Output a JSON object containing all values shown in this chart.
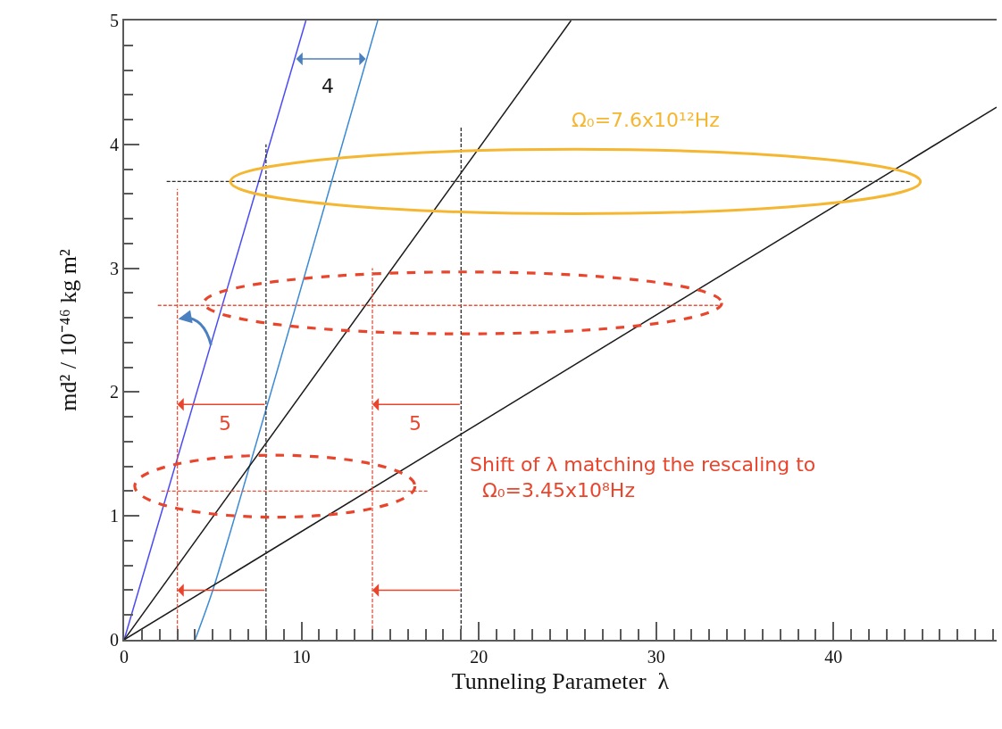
{
  "chart_data": {
    "type": "line",
    "xlabel": "Tunneling Parameter  λ",
    "ylabel": "md² / 10⁻⁴⁶ kg m²",
    "xlim": [
      0,
      49.2
    ],
    "ylim": [
      0,
      5
    ],
    "xticks": [
      0,
      10,
      20,
      30,
      40,
      {
        "value": 1,
        "label": null
      },
      {
        "value": 2,
        "label": null
      },
      {
        "value": 3,
        "label": null
      },
      {
        "value": 4,
        "label": null
      },
      {
        "value": 5,
        "label": null
      },
      {
        "value": 6,
        "label": null
      },
      {
        "value": 7,
        "label": null
      },
      {
        "value": 8,
        "label": null
      },
      {
        "value": 9,
        "label": null
      },
      {
        "value": 11,
        "label": null
      },
      {
        "value": 12,
        "label": null
      },
      {
        "value": 13,
        "label": null
      },
      {
        "value": 14,
        "label": null
      },
      {
        "value": 15,
        "label": null
      },
      {
        "value": 16,
        "label": null
      },
      {
        "value": 17,
        "label": null
      },
      {
        "value": 18,
        "label": null
      },
      {
        "value": 19,
        "label": null
      },
      {
        "value": 21,
        "label": null
      },
      {
        "value": 22,
        "label": null
      },
      {
        "value": 23,
        "label": null
      },
      {
        "value": 24,
        "label": null
      },
      {
        "value": 25,
        "label": null
      },
      {
        "value": 26,
        "label": null
      },
      {
        "value": 27,
        "label": null
      },
      {
        "value": 28,
        "label": null
      },
      {
        "value": 29,
        "label": null
      },
      {
        "value": 31,
        "label": null
      },
      {
        "value": 32,
        "label": null
      },
      {
        "value": 33,
        "label": null
      },
      {
        "value": 34,
        "label": null
      },
      {
        "value": 35,
        "label": null
      },
      {
        "value": 36,
        "label": null
      },
      {
        "value": 37,
        "label": null
      },
      {
        "value": 38,
        "label": null
      },
      {
        "value": 39,
        "label": null
      },
      {
        "value": 41,
        "label": null
      },
      {
        "value": 42,
        "label": null
      },
      {
        "value": 43,
        "label": null
      },
      {
        "value": 44,
        "label": null
      },
      {
        "value": 45,
        "label": null
      },
      {
        "value": 46,
        "label": null
      },
      {
        "value": 47,
        "label": null
      },
      {
        "value": 48,
        "label": null
      },
      {
        "value": 49,
        "label": null
      }
    ],
    "yticks": [
      0,
      1,
      2,
      3,
      4,
      5,
      {
        "value": 0.2,
        "label": null
      },
      {
        "value": 0.4,
        "label": null
      },
      {
        "value": 0.6,
        "label": null
      },
      {
        "value": 0.8,
        "label": null
      },
      {
        "value": 1.2,
        "label": null
      },
      {
        "value": 1.4,
        "label": null
      },
      {
        "value": 1.6,
        "label": null
      },
      {
        "value": 1.8,
        "label": null
      },
      {
        "value": 2.2,
        "label": null
      },
      {
        "value": 2.4,
        "label": null
      },
      {
        "value": 2.6,
        "label": null
      },
      {
        "value": 2.8,
        "label": null
      },
      {
        "value": 3.2,
        "label": null
      },
      {
        "value": 3.4,
        "label": null
      },
      {
        "value": 3.6,
        "label": null
      },
      {
        "value": 3.8,
        "label": null
      },
      {
        "value": 4.2,
        "label": null
      },
      {
        "value": 4.4,
        "label": null
      },
      {
        "value": 4.6,
        "label": null
      },
      {
        "value": 4.8,
        "label": null
      }
    ],
    "series": [
      {
        "color": "#4b4bf5",
        "line_style": "solid",
        "x": [
          0,
          10.25
        ],
        "values": [
          0,
          5
        ]
      },
      {
        "color": "#3a8ad6",
        "line_style": "solid",
        "x": [
          4.0,
          5.0,
          14.3
        ],
        "values": [
          0,
          0.4,
          5
        ]
      },
      {
        "color": "#1a1a1a",
        "line_style": "solid",
        "x": [
          0,
          25.2
        ],
        "values": [
          0,
          5
        ]
      },
      {
        "color": "#1a1a1a",
        "line_style": "solid",
        "x": [
          0,
          49.2
        ],
        "values": [
          0,
          4.3
        ]
      },
      {
        "color": "#2b2b2b",
        "line_style": "dashed",
        "x": [
          2.4,
          44.4
        ],
        "values": [
          3.7,
          3.7
        ]
      },
      {
        "color": "#2b2b2b",
        "line_style": "dashed",
        "x": [
          8,
          8
        ],
        "values": [
          0,
          4.0
        ]
      },
      {
        "color": "#2b2b2b",
        "line_style": "dashed",
        "x": [
          19,
          19
        ],
        "values": [
          0,
          4.15
        ]
      },
      {
        "color": "#f0503a",
        "line_style": "dashed",
        "x": [
          3,
          3
        ],
        "values": [
          0,
          3.64
        ]
      },
      {
        "color": "#f0503a",
        "line_style": "dashed",
        "x": [
          14,
          14
        ],
        "values": [
          0,
          3.0
        ]
      },
      {
        "color": "#f0503a",
        "line_style": "dashed",
        "x": [
          1.9,
          33.7
        ],
        "values": [
          2.7,
          2.7
        ]
      },
      {
        "color": "#f0503a",
        "line_style": "dashed",
        "x": [
          2.1,
          17.1
        ],
        "values": [
          1.2,
          1.2
        ]
      }
    ],
    "annotations": [
      "4",
      "5",
      "5",
      "Ω₀=7.6x10¹²Hz",
      "Shift of λ matching the rescaling to\n  Ω₀=3.45x10⁸Hz"
    ]
  }
}
